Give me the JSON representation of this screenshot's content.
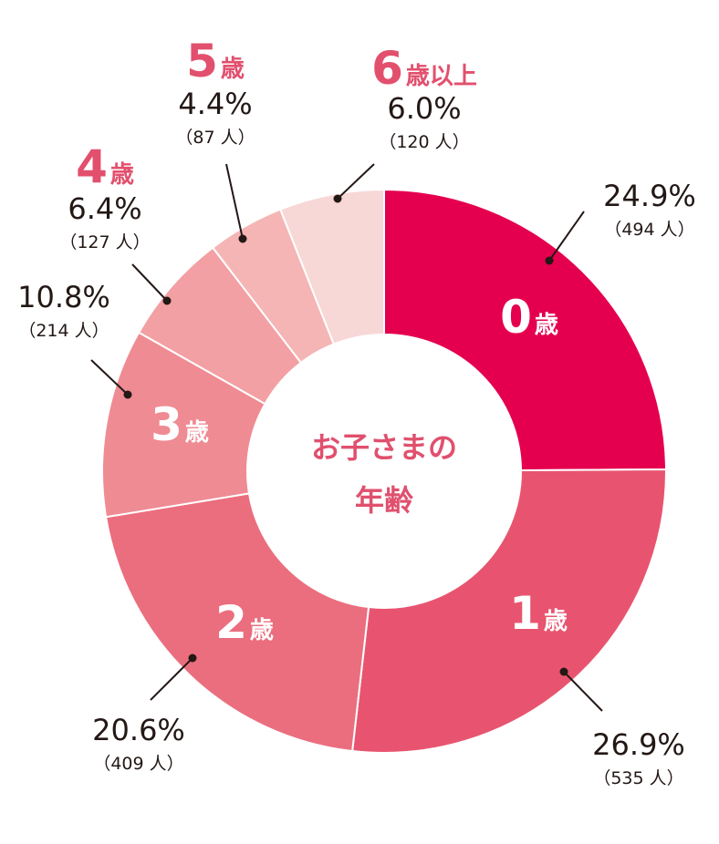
{
  "chart_data": {
    "type": "pie",
    "variant": "donut",
    "center_label": [
      "お子さまの",
      "年齢"
    ],
    "slices": [
      {
        "age_num": "0",
        "age_suffix": "歳",
        "percent": 24.9,
        "percent_label": "24.9%",
        "count_label": "（494 人）",
        "color": "#e4004f",
        "label_color": "#ffffff"
      },
      {
        "age_num": "1",
        "age_suffix": "歳",
        "percent": 26.9,
        "percent_label": "26.9%",
        "count_label": "（535 人）",
        "color": "#e8546f",
        "label_color": "#ffffff"
      },
      {
        "age_num": "2",
        "age_suffix": "歳",
        "percent": 20.6,
        "percent_label": "20.6%",
        "count_label": "（409 人）",
        "color": "#eb6e7e",
        "label_color": "#ffffff"
      },
      {
        "age_num": "3",
        "age_suffix": "歳",
        "percent": 10.8,
        "percent_label": "10.8%",
        "count_label": "（214 人）",
        "color": "#ef8b93",
        "label_color": "#ffffff"
      },
      {
        "age_num": "4",
        "age_suffix": "歳",
        "percent": 6.4,
        "percent_label": "6.4%",
        "count_label": "（127 人）",
        "color": "#f2a0a3",
        "label_color": "#e2506e"
      },
      {
        "age_num": "5",
        "age_suffix": "歳",
        "percent": 4.4,
        "percent_label": "4.4%",
        "count_label": "（87 人）",
        "color": "#f5b5b5",
        "label_color": "#e2506e"
      },
      {
        "age_num": "6",
        "age_suffix": "歳以上",
        "percent": 6.0,
        "percent_label": "6.0%",
        "count_label": "（120 人）",
        "color": "#f8d7d7",
        "label_color": "#e2506e"
      }
    ]
  }
}
